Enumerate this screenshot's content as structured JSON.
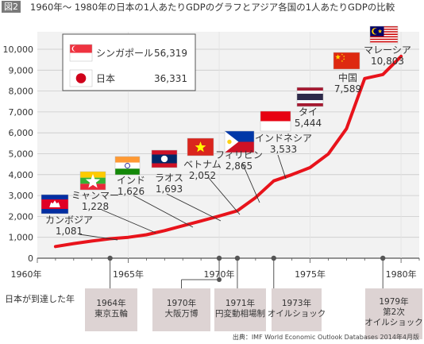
{
  "figure_tag": "図2",
  "title": "1960年〜 1980年の日本の1人あたりGDPのグラフとアジア各国の1人あたりGDPの比較",
  "source": "出典：IMF World Economic Outlook Databases 2014年4月版",
  "chart_data": {
    "type": "line",
    "x_ticks": [
      "1960年",
      "1965年",
      "1970年",
      "1975年",
      "1980年"
    ],
    "y_ticks": [
      "0",
      "1,000",
      "2,000",
      "3,000",
      "4,000",
      "5,000",
      "6,000",
      "7,000",
      "8,000",
      "9,000",
      "10,000"
    ],
    "xlim": [
      1960,
      1981
    ],
    "ylim": [
      0,
      10500
    ],
    "series": [
      {
        "name": "日本",
        "color": "#e8131b",
        "x": [
          1961,
          1962,
          1963,
          1964,
          1965,
          1966,
          1967,
          1968,
          1969,
          1970,
          1971,
          1972,
          1973,
          1974,
          1975,
          1976,
          1977,
          1978,
          1979,
          1980
        ],
        "y": [
          560,
          700,
          820,
          930,
          1000,
          1120,
          1320,
          1550,
          1780,
          2020,
          2270,
          2900,
          3700,
          4000,
          4340,
          4990,
          6200,
          8600,
          8790,
          9660
        ]
      }
    ],
    "legend": {
      "placement": "top-left",
      "entries": [
        {
          "country": "シンガポール",
          "value": "56,319",
          "flag": "singapore"
        },
        {
          "country": "日本",
          "value": "36,331",
          "flag": "japan"
        }
      ]
    },
    "country_annotations": [
      {
        "country": "カンボジア",
        "value": "1,081",
        "flag": "cambodia"
      },
      {
        "country": "ミャンマー",
        "value": "1,228",
        "flag": "myanmar"
      },
      {
        "country": "インド",
        "value": "1,626",
        "flag": "india"
      },
      {
        "country": "ラオス",
        "value": "1,693",
        "flag": "laos"
      },
      {
        "country": "ベトナム",
        "value": "2,052",
        "flag": "vietnam"
      },
      {
        "country": "フィリピン",
        "value": "2,865",
        "flag": "philippines"
      },
      {
        "country": "インドネシア",
        "value": "3,533",
        "flag": "indonesia"
      },
      {
        "country": "タイ",
        "value": "5,444",
        "flag": "thailand"
      },
      {
        "country": "中国",
        "value": "7,589",
        "flag": "china"
      },
      {
        "country": "マレーシア",
        "value": "10,803",
        "flag": "malaysia"
      }
    ],
    "milestone_heading": "日本が到達した年",
    "milestones": [
      {
        "year": 1964,
        "lines": [
          "1964年",
          "東京五輪"
        ]
      },
      {
        "year": 1970,
        "lines": [
          "1970年",
          "大阪万博"
        ]
      },
      {
        "year": 1971,
        "lines": [
          "1971年",
          "円変動相場制"
        ]
      },
      {
        "year": 1973,
        "lines": [
          "1973年",
          "オイルショック"
        ]
      },
      {
        "year": 1979,
        "lines": [
          "1979年",
          "第2次",
          "オイルショック"
        ]
      }
    ]
  }
}
